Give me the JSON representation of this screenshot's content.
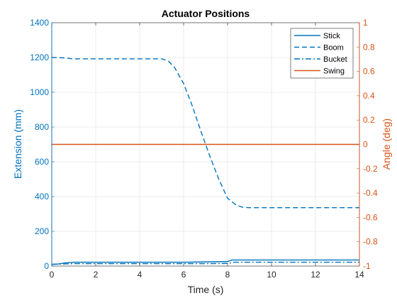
{
  "chart_data": {
    "type": "line",
    "title": "Actuator Positions",
    "xlabel": "Time (s)",
    "ylabel_left": "Extension (mm)",
    "ylabel_right": "Angle (deg)",
    "xlim": [
      0,
      14
    ],
    "ylim_left": [
      0,
      1400
    ],
    "ylim_right": [
      -1,
      1
    ],
    "xticks": [
      0,
      2,
      4,
      6,
      8,
      10,
      12,
      14
    ],
    "xtick_labels": [
      "0",
      "2",
      "4",
      "6",
      "8",
      "10",
      "12",
      "14"
    ],
    "yticks_left": [
      0,
      200,
      400,
      600,
      800,
      1000,
      1200,
      1400
    ],
    "ytick_labels_left": [
      "0",
      "200",
      "400",
      "600",
      "800",
      "1000",
      "1200",
      "1400"
    ],
    "yticks_right": [
      -1,
      -0.8,
      -0.6,
      -0.4,
      -0.2,
      0,
      0.2,
      0.4,
      0.6,
      0.8,
      1
    ],
    "ytick_labels_right": [
      "-1",
      "-0.8",
      "-0.6",
      "-0.4",
      "-0.2",
      "0",
      "0.2",
      "0.4",
      "0.6",
      "0.8",
      "1"
    ],
    "grid": true,
    "legend_position": "top-right",
    "colors": {
      "left": "#0072BD",
      "right": "#D95319",
      "axis_black": "#262626",
      "grid": "#e6e6e6"
    },
    "series": [
      {
        "name": "Stick",
        "axis": "left",
        "style": "solid",
        "color": "#0072BD",
        "x": [
          0,
          0.3,
          0.6,
          1.0,
          2,
          4,
          6,
          7,
          8.0,
          8.2,
          10,
          12,
          14
        ],
        "y": [
          10,
          12,
          18,
          22,
          22,
          22,
          22,
          24,
          26,
          35,
          35,
          35,
          35
        ]
      },
      {
        "name": "Boom",
        "axis": "left",
        "style": "dashed",
        "color": "#0072BD",
        "x": [
          0,
          0.5,
          1.0,
          2,
          3,
          4,
          5,
          5.3,
          5.6,
          6.0,
          6.4,
          6.8,
          7.2,
          7.6,
          8.0,
          8.4,
          8.7,
          9.0,
          9.5,
          10,
          12,
          14
        ],
        "y": [
          1200,
          1198,
          1192,
          1192,
          1192,
          1192,
          1192,
          1180,
          1140,
          1050,
          920,
          770,
          630,
          500,
          390,
          350,
          338,
          336,
          336,
          336,
          336,
          336
        ]
      },
      {
        "name": "Bucket",
        "axis": "left",
        "style": "dashdot",
        "color": "#0072BD",
        "x": [
          0,
          0.5,
          1.0,
          2,
          4,
          6,
          7,
          8.0,
          8.3,
          10,
          12,
          14
        ],
        "y": [
          10,
          12,
          14,
          14,
          14,
          14,
          14,
          15,
          22,
          22,
          22,
          22
        ]
      },
      {
        "name": "Swing",
        "axis": "right",
        "style": "solid",
        "color": "#D95319",
        "x": [
          0,
          14
        ],
        "y": [
          0,
          0
        ]
      }
    ]
  }
}
